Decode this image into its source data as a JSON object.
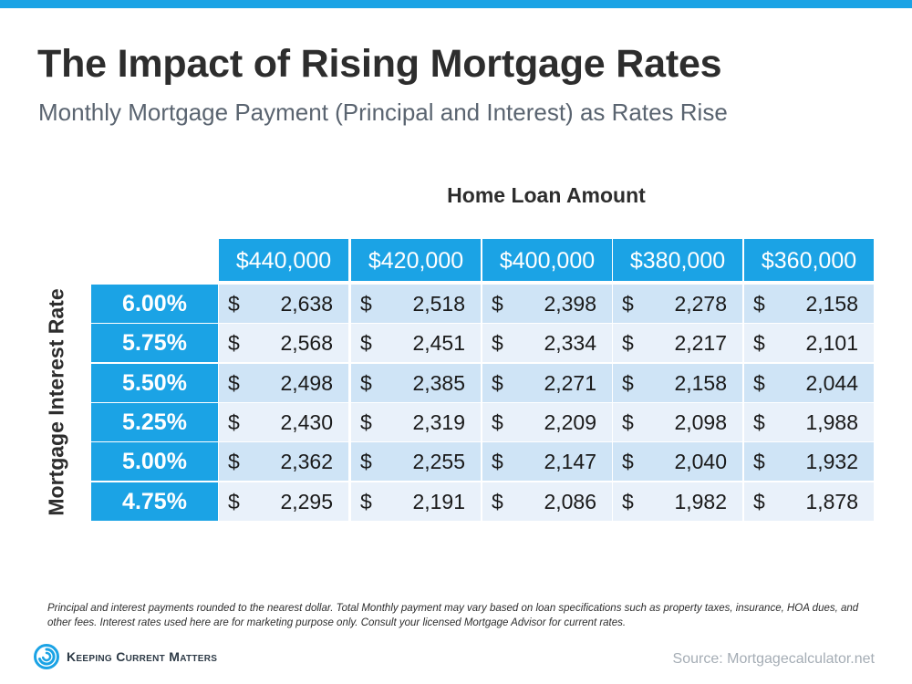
{
  "header": {
    "title": "The Impact of Rising Mortgage Rates",
    "subtitle": "Monthly Mortgage Payment (Principal and Interest) as Rates Rise"
  },
  "chart_data": {
    "type": "table",
    "title": "The Impact of Rising Mortgage Rates",
    "subtitle": "Monthly Mortgage Payment (Principal and Interest) as Rates Rise",
    "column_axis_label": "Home Loan Amount",
    "row_axis_label": "Mortgage Interest Rate",
    "columns": [
      "$440,000",
      "$420,000",
      "$400,000",
      "$380,000",
      "$360,000"
    ],
    "currency_symbol": "$",
    "rows": [
      {
        "rate": "6.00%",
        "values": [
          "2,638",
          "2,518",
          "2,398",
          "2,278",
          "2,158"
        ]
      },
      {
        "rate": "5.75%",
        "values": [
          "2,568",
          "2,451",
          "2,334",
          "2,217",
          "2,101"
        ]
      },
      {
        "rate": "5.50%",
        "values": [
          "2,498",
          "2,385",
          "2,271",
          "2,158",
          "2,044"
        ]
      },
      {
        "rate": "5.25%",
        "values": [
          "2,430",
          "2,319",
          "2,209",
          "2,098",
          "1,988"
        ]
      },
      {
        "rate": "5.00%",
        "values": [
          "2,362",
          "2,255",
          "2,147",
          "2,040",
          "1,932"
        ]
      },
      {
        "rate": "4.75%",
        "values": [
          "2,295",
          "2,191",
          "2,086",
          "1,982",
          "1,878"
        ]
      }
    ]
  },
  "footer": {
    "footnote": "Principal and interest payments rounded to the nearest dollar. Total Monthly payment may vary based on loan specifications such as property taxes, insurance, HOA dues, and other fees. Interest rates used here are for marketing purpose only. Consult your licensed Mortgage Advisor for current rates.",
    "brand": "Keeping Current Matters",
    "brand_icon": "kcm-swirl-logo-icon",
    "source": "Source: Mortgagecalculator.net"
  },
  "colors": {
    "accent": "#1ba3e5",
    "row_dark": "#cfe4f6",
    "row_light": "#e9f1fa",
    "title": "#2d2d2d",
    "subtitle": "#5a6470"
  }
}
